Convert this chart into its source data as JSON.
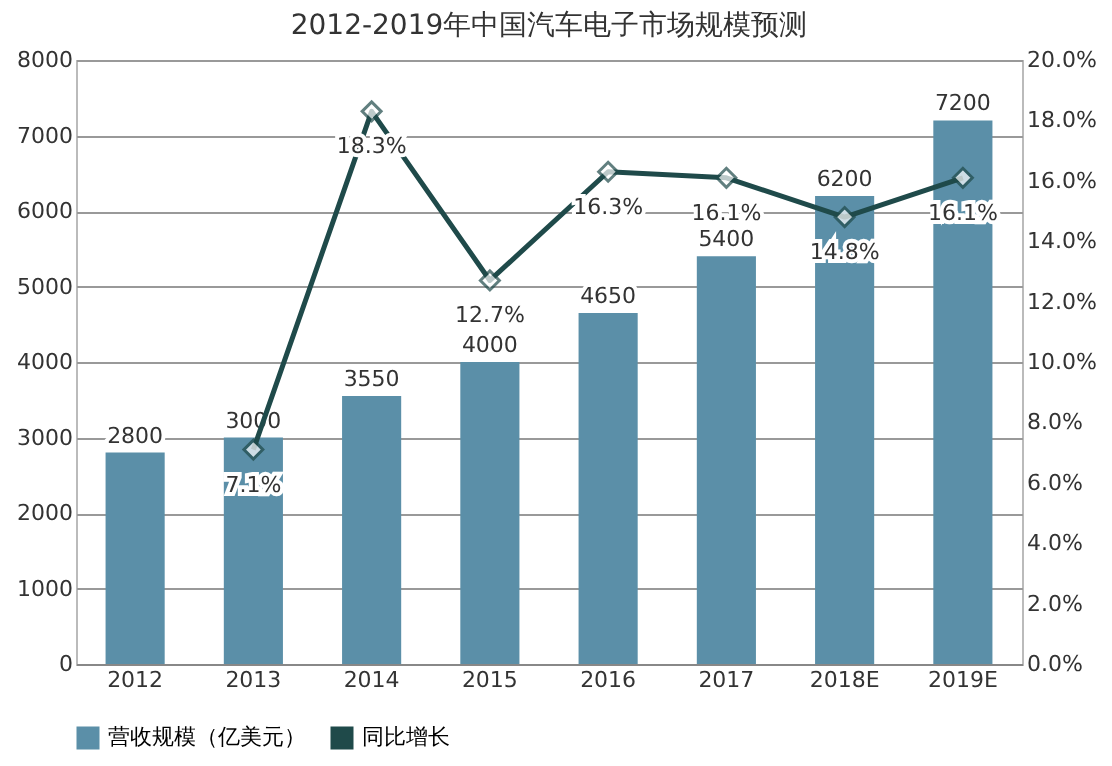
{
  "chart_data": {
    "type": "bar",
    "title": "2012-2019年中国汽车电子市场规模预测",
    "categories": [
      "2012",
      "2013",
      "2014",
      "2015",
      "2016",
      "2017",
      "2018E",
      "2019E"
    ],
    "series": [
      {
        "name": "营收规模（亿美元）",
        "color": "#5b8fa8",
        "values": [
          2800,
          3000,
          3550,
          4000,
          4650,
          5400,
          6200,
          7200
        ],
        "value_labels": [
          "2800",
          "3000",
          "3550",
          "4000",
          "4650",
          "5400",
          "6200",
          "7200"
        ]
      },
      {
        "name": "同比增长",
        "type": "line",
        "axis": "y2",
        "color": "#1f4a4a",
        "marker": "diamond",
        "values": [
          null,
          7.1,
          18.3,
          12.7,
          16.3,
          16.1,
          14.8,
          16.1
        ],
        "value_labels": [
          null,
          "7.1%",
          "18.3%",
          "12.7%",
          "16.3%",
          "16.1%",
          "14.8%",
          "16.1%"
        ]
      }
    ],
    "ylim": [
      0,
      8000
    ],
    "yticks": [
      0,
      1000,
      2000,
      3000,
      4000,
      5000,
      6000,
      7000,
      8000
    ],
    "y2lim": [
      0,
      20
    ],
    "y2ticks": [
      {
        "value": 0,
        "label": "0.0%"
      },
      {
        "value": 2,
        "label": "2.0%"
      },
      {
        "value": 4,
        "label": "4.0%"
      },
      {
        "value": 6,
        "label": "6.0%"
      },
      {
        "value": 8,
        "label": "8.0%"
      },
      {
        "value": 10,
        "label": "10.0%"
      },
      {
        "value": 12,
        "label": "12.0%"
      },
      {
        "value": 14,
        "label": "14.0%"
      },
      {
        "value": 16,
        "label": "16.0%"
      },
      {
        "value": 18,
        "label": "18.0%"
      },
      {
        "value": 20,
        "label": "20.0%"
      }
    ],
    "grid": "y",
    "legend": "bottom"
  }
}
